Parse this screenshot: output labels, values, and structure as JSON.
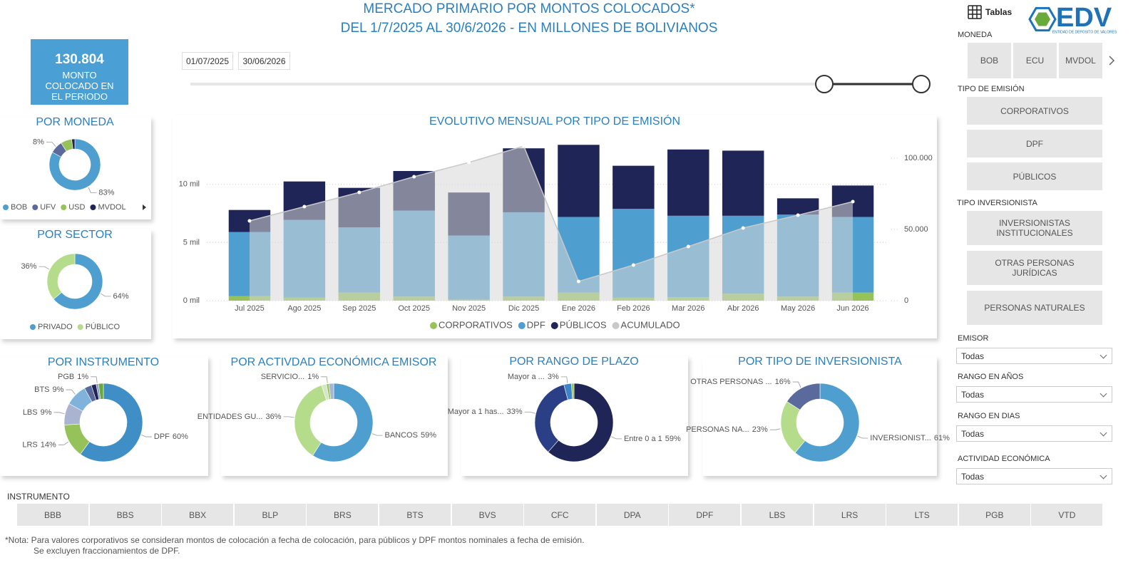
{
  "header": {
    "title_line1": "MERCADO PRIMARIO POR MONTOS COLOCADOS*",
    "title_line2": "DEL 1/7/2025 AL 30/6/2026 - EN MILLONES DE BOLIVIANOS"
  },
  "kpi": {
    "value": "130.804",
    "label": "MONTO COLOCADO EN EL PERIODO"
  },
  "date_range": {
    "start": "01/07/2025",
    "end": "30/06/2026"
  },
  "toolbar": {
    "tables_button": "Tablas",
    "logo": "EDV",
    "logo_subtitle": "ENTIDAD DE DEPOSITO DE VALORES"
  },
  "chart_data": [
    {
      "type": "bar",
      "stacked": true,
      "title": "EVOLUTIVO MENSUAL POR TIPO DE EMISIÓN",
      "categories": [
        "Jul 2025",
        "Ago 2025",
        "Sep 2025",
        "Oct 2025",
        "Nov 2025",
        "Dic 2025",
        "Ene 2026",
        "Feb 2026",
        "Mar 2026",
        "Abr 2026",
        "May 2026",
        "Jun 2026"
      ],
      "series": [
        {
          "name": "CORPORATIVOS",
          "color": "#95c35a",
          "values": [
            400,
            250,
            700,
            350,
            100,
            350,
            700,
            250,
            300,
            600,
            350,
            700
          ]
        },
        {
          "name": "DPF",
          "color": "#4e9fd0",
          "values": [
            5500,
            6700,
            5600,
            7400,
            5500,
            7250,
            6500,
            7650,
            7000,
            6700,
            7050,
            6500
          ]
        },
        {
          "name": "PÚBLICOS",
          "color": "#1f2556",
          "values": [
            1900,
            3300,
            3400,
            3400,
            3700,
            5500,
            6200,
            3700,
            5700,
            5600,
            1400,
            2700
          ]
        },
        {
          "name": "ACUMULADO",
          "color": "#c8c8c8",
          "type": "line",
          "axis": "y2",
          "values": [
            56000,
            66000,
            76000,
            87000,
            97000,
            108500,
            13500,
            25000,
            38000,
            51000,
            60000,
            69500
          ]
        }
      ],
      "ylim": [
        0,
        13600
      ],
      "yticks": [
        {
          "value": 0,
          "label": "0 mil"
        },
        {
          "value": 5000,
          "label": "5 mil"
        },
        {
          "value": 10000,
          "label": "10 mil"
        }
      ],
      "y2lim": [
        0,
        111000
      ],
      "y2ticks": [
        0,
        {
          "value": 50000,
          "label": "50.000"
        },
        {
          "value": 100000,
          "label": "100.000"
        }
      ],
      "grid": true,
      "legend": "bottom"
    },
    {
      "type": "donut",
      "title": "POR MONEDA",
      "categories": [
        "BOB",
        "UFV",
        "USD",
        "MVDOL"
      ],
      "values": [
        83,
        8,
        7,
        2
      ],
      "value_labels": [
        "83%",
        "8%",
        null,
        null
      ],
      "colors": [
        "#4e9fd0",
        "#5b6a9c",
        "#95c35a",
        "#1f2556"
      ],
      "legend": "bottom"
    },
    {
      "type": "donut",
      "title": "POR SECTOR",
      "categories": [
        "PRIVADO",
        "PÚBLICO"
      ],
      "values": [
        64,
        36
      ],
      "value_labels": [
        "64%",
        "36%"
      ],
      "colors": [
        "#4e9fd0",
        "#b5dc8b"
      ],
      "legend": "bottom"
    },
    {
      "type": "donut",
      "title": "POR INSTRUMENTO",
      "categories": [
        "DPF",
        "LRS",
        "LBS",
        "BTS",
        null,
        null,
        "PGB",
        null
      ],
      "values": [
        60,
        14,
        9,
        9,
        3,
        2,
        1,
        2
      ],
      "value_labels": [
        "60%",
        "14%",
        "9%",
        "9%",
        null,
        null,
        "1%",
        null
      ],
      "colors": [
        "#3f8fc6",
        "#95c35a",
        "#a9b4d0",
        "#7fb3dc",
        "#5b6a9c",
        "#1f2556",
        "#8aa0c8",
        "#6aaa3a"
      ]
    },
    {
      "type": "donut",
      "title": "POR ACTIVDAD ECONÓMICA EMISOR",
      "categories": [
        "BANCOS",
        "ENTIDADES GU...",
        null,
        "SERVICIO...",
        null
      ],
      "values": [
        59,
        36,
        2,
        1,
        2
      ],
      "value_labels": [
        "59%",
        "36%",
        null,
        "1%",
        null
      ],
      "colors": [
        "#4e9fd0",
        "#b5dc8b",
        "#d5e6c4",
        "#95c35a",
        "#a9b4d0"
      ]
    },
    {
      "type": "donut",
      "title": "POR RANGO DE PLAZO",
      "categories": [
        "Entre 0 a 1",
        "Mayor a 1 has...",
        "Mayor a ...",
        null
      ],
      "values": [
        59,
        33,
        3,
        1
      ],
      "value_labels": [
        "59%",
        "33%",
        "3%",
        null
      ],
      "colors": [
        "#1f2556",
        "#2b3f87",
        "#3a86c8",
        "#95c35a"
      ]
    },
    {
      "type": "donut",
      "title": "POR TIPO DE INVERSIONISTA",
      "categories": [
        "INVERSIONIST...",
        "PERSONAS NA...",
        "OTRAS PERSONAS ..."
      ],
      "values": [
        61,
        23,
        16
      ],
      "value_labels": [
        "61%",
        "23%",
        "16%"
      ],
      "colors": [
        "#4e9fd0",
        "#b5dc8b",
        "#5b6a9c"
      ]
    }
  ],
  "filters": {
    "moneda": {
      "label": "MONEDA",
      "options": [
        "BOB",
        "ECU",
        "MVDOL"
      ]
    },
    "tipo_emision": {
      "label": "TIPO DE EMISIÓN",
      "options": [
        "CORPORATIVOS",
        "DPF",
        "PÚBLICOS"
      ]
    },
    "tipo_inversionista": {
      "label": "TIPO INVERSIONISTA",
      "options": [
        "INVERSIONISTAS INSTITUCIONALES",
        "OTRAS PERSONAS JURÍDICAS",
        "PERSONAS NATURALES"
      ]
    },
    "dropdowns": [
      {
        "label": "EMISOR",
        "value": "Todas"
      },
      {
        "label": "RANGO EN AÑOS",
        "value": "Todas"
      },
      {
        "label": "RANGO EN DIAS",
        "value": "Todas"
      },
      {
        "label": "ACTIVIDAD ECONÓMICA",
        "value": "Todas"
      }
    ]
  },
  "instrumento": {
    "label": "INSTRUMENTO",
    "options": [
      "BBB",
      "BBS",
      "BBX",
      "BLP",
      "BRS",
      "BTS",
      "BVS",
      "CFC",
      "DPA",
      "DPF",
      "LBS",
      "LRS",
      "LTS",
      "PGB",
      "VTD"
    ]
  },
  "note": {
    "line1": "*Nota: Para valores corporativos se consideran montos de colocación a fecha de colocación, para públicos y DPF montos nominales a fecha de emisión.",
    "line2": "Se excluyen fraccionamientos de DPF."
  }
}
